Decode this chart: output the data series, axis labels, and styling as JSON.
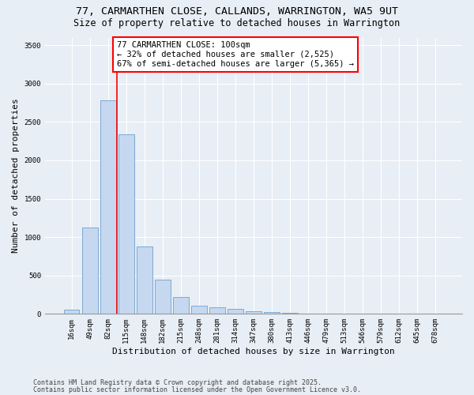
{
  "title1": "77, CARMARTHEN CLOSE, CALLANDS, WARRINGTON, WA5 9UT",
  "title2": "Size of property relative to detached houses in Warrington",
  "xlabel": "Distribution of detached houses by size in Warrington",
  "ylabel": "Number of detached properties",
  "categories": [
    "16sqm",
    "49sqm",
    "82sqm",
    "115sqm",
    "148sqm",
    "182sqm",
    "215sqm",
    "248sqm",
    "281sqm",
    "314sqm",
    "347sqm",
    "380sqm",
    "413sqm",
    "446sqm",
    "479sqm",
    "513sqm",
    "546sqm",
    "579sqm",
    "612sqm",
    "645sqm",
    "678sqm"
  ],
  "values": [
    50,
    1120,
    2780,
    2340,
    880,
    450,
    215,
    110,
    90,
    65,
    35,
    20,
    10,
    5,
    5,
    2,
    2,
    1,
    1,
    1,
    1
  ],
  "bar_color": "#c5d8f0",
  "bar_edge_color": "#6fa0cc",
  "vline_x": 2.5,
  "vline_color": "red",
  "annotation_text": "77 CARMARTHEN CLOSE: 100sqm\n← 32% of detached houses are smaller (2,525)\n67% of semi-detached houses are larger (5,365) →",
  "annotation_box_color": "white",
  "annotation_box_edge": "red",
  "ylim": [
    0,
    3600
  ],
  "yticks": [
    0,
    500,
    1000,
    1500,
    2000,
    2500,
    3000,
    3500
  ],
  "footer1": "Contains HM Land Registry data © Crown copyright and database right 2025.",
  "footer2": "Contains public sector information licensed under the Open Government Licence v3.0.",
  "bg_color": "#e8eef5",
  "plot_bg_color": "#e8eef5",
  "grid_color": "white",
  "title1_fontsize": 9.5,
  "title2_fontsize": 8.5,
  "tick_fontsize": 6.5,
  "ylabel_fontsize": 8,
  "xlabel_fontsize": 8,
  "annotation_fontsize": 7.5,
  "footer_fontsize": 6
}
